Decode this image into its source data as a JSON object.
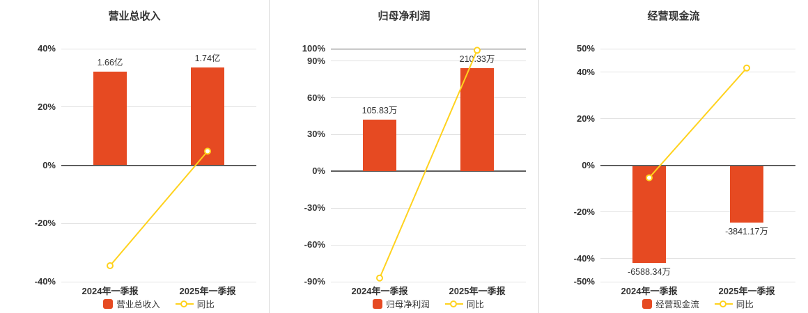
{
  "colors": {
    "bar": "#e64a22",
    "line": "#ffd21e",
    "title": "#333333",
    "axis_label": "#333333",
    "value_label": "#333333",
    "grid": "#e2e2e2",
    "zero_line": "#5e5e5e",
    "divider": "#d9d9d9",
    "background": "#ffffff"
  },
  "legend": {
    "line_label": "同比"
  },
  "chart_data": [
    {
      "type": "bar",
      "title": "营业总收入",
      "categories": [
        "2024年一季报",
        "2025年一季报"
      ],
      "bar_series": {
        "name": "营业总收入",
        "value_labels": [
          "1.66亿",
          "1.74亿"
        ],
        "display_values_axis": [
          32.06,
          33.6
        ],
        "note": "bar heights drawn in axis % units; labels show amounts"
      },
      "line_series": {
        "name": "同比",
        "unit": "%",
        "values": [
          -34.5,
          4.8
        ]
      },
      "y_ticks": [
        40,
        20,
        0,
        -20,
        -40
      ],
      "ylim": [
        -40,
        40
      ],
      "grid": true,
      "legend_position": "bottom",
      "dark_top_line": false
    },
    {
      "type": "bar",
      "title": "归母净利润",
      "categories": [
        "2024年一季报",
        "2025年一季报"
      ],
      "bar_series": {
        "name": "归母净利润",
        "value_labels": [
          "105.83万",
          "210.33万"
        ],
        "display_values_axis": [
          42.26,
          84
        ],
        "note": "bar heights drawn in axis % units; labels show amounts"
      },
      "line_series": {
        "name": "同比",
        "unit": "%",
        "values": [
          -87,
          98.7
        ]
      },
      "y_ticks": [
        100,
        90,
        60,
        30,
        0,
        -30,
        -60,
        -90
      ],
      "ylim": [
        -90,
        100
      ],
      "grid": true,
      "legend_position": "bottom",
      "dark_top_line": true
    },
    {
      "type": "bar",
      "title": "经营现金流",
      "categories": [
        "2024年一季报",
        "2025年一季报"
      ],
      "bar_series": {
        "name": "经营现金流",
        "value_labels": [
          "-6588.34万",
          "-3841.17万"
        ],
        "display_values_axis": [
          -42,
          -24.49
        ],
        "note": "bar heights drawn in axis % units; labels show amounts"
      },
      "line_series": {
        "name": "同比",
        "unit": "%",
        "values": [
          -5.4,
          41.7
        ]
      },
      "y_ticks": [
        50,
        40,
        20,
        0,
        -20,
        -40,
        -50
      ],
      "ylim": [
        -50,
        50
      ],
      "grid": true,
      "legend_position": "bottom",
      "dark_top_line": false
    }
  ]
}
